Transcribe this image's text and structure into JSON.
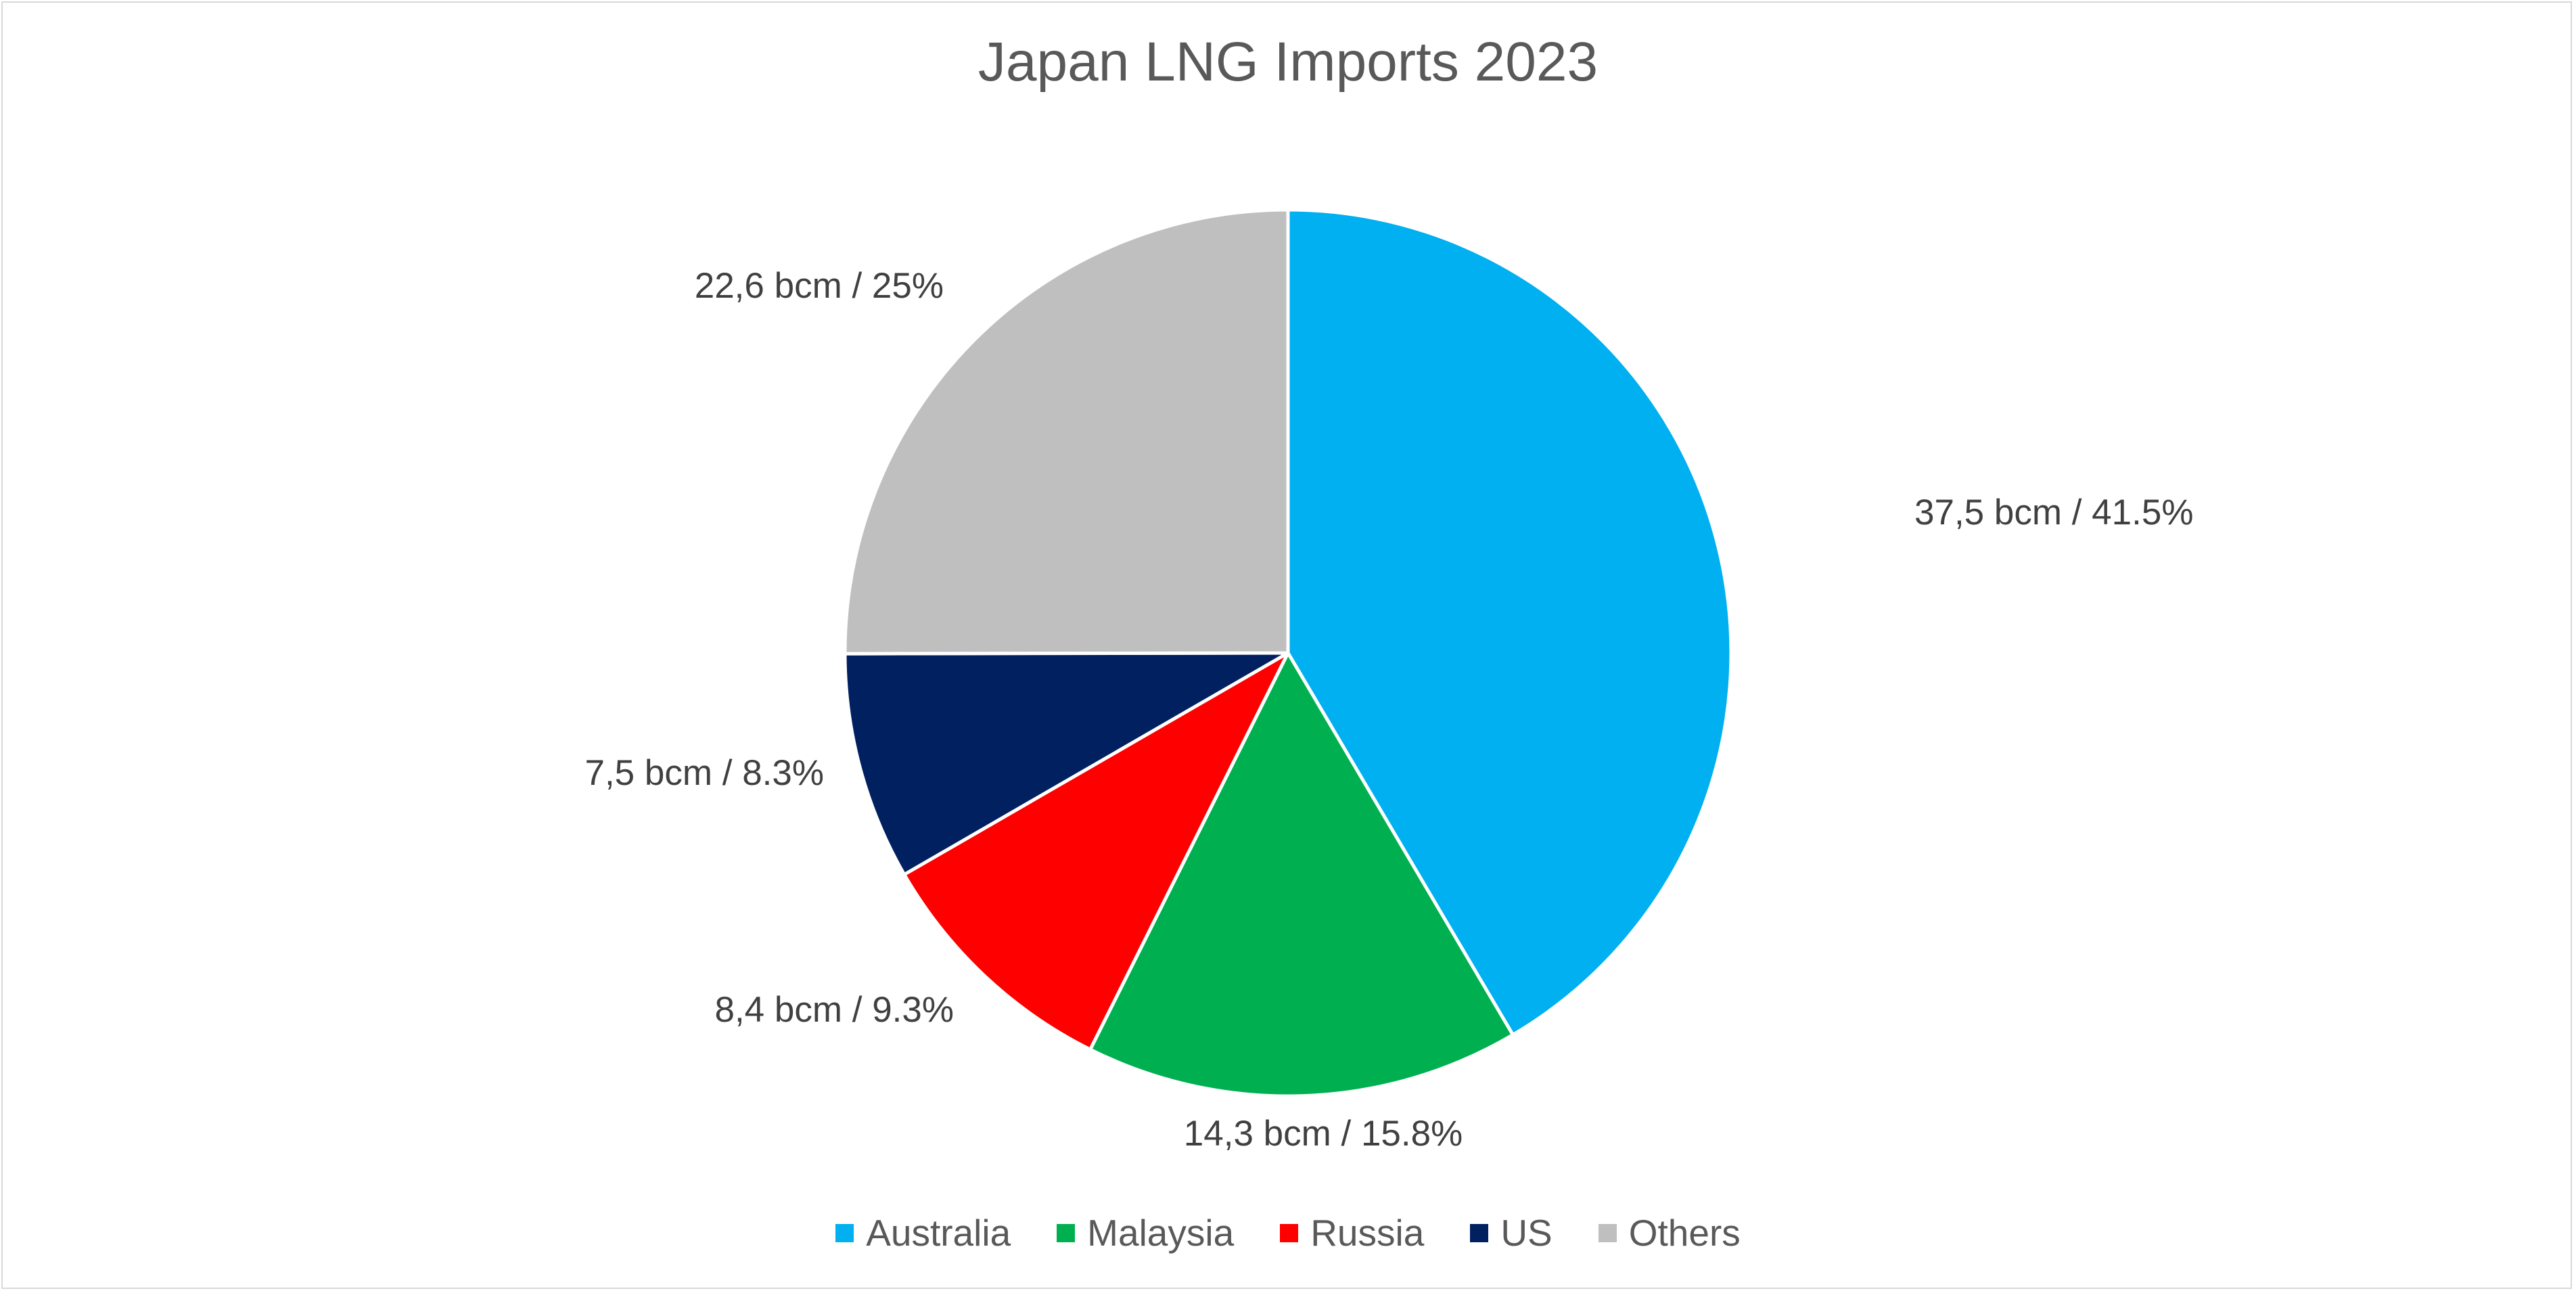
{
  "chart_data": {
    "type": "pie",
    "title": "Japan LNG Imports 2023",
    "legend_position": "bottom",
    "slices": [
      {
        "name": "Australia",
        "value": 37.5,
        "percent": 41.5,
        "label": "37,5 bcm / 41.5%",
        "color": "#00B0F0"
      },
      {
        "name": "Malaysia",
        "value": 14.3,
        "percent": 15.8,
        "label": "14,3 bcm / 15.8%",
        "color": "#00B050"
      },
      {
        "name": "Russia",
        "value": 8.4,
        "percent": 9.3,
        "label": "8,4 bcm / 9.3%",
        "color": "#FF0000"
      },
      {
        "name": "US",
        "value": 7.5,
        "percent": 8.3,
        "label": "7,5 bcm / 8.3%",
        "color": "#002060"
      },
      {
        "name": "Others",
        "value": 22.6,
        "percent": 25,
        "label": "22,6 bcm / 25%",
        "color": "#BFBFBF"
      }
    ]
  }
}
